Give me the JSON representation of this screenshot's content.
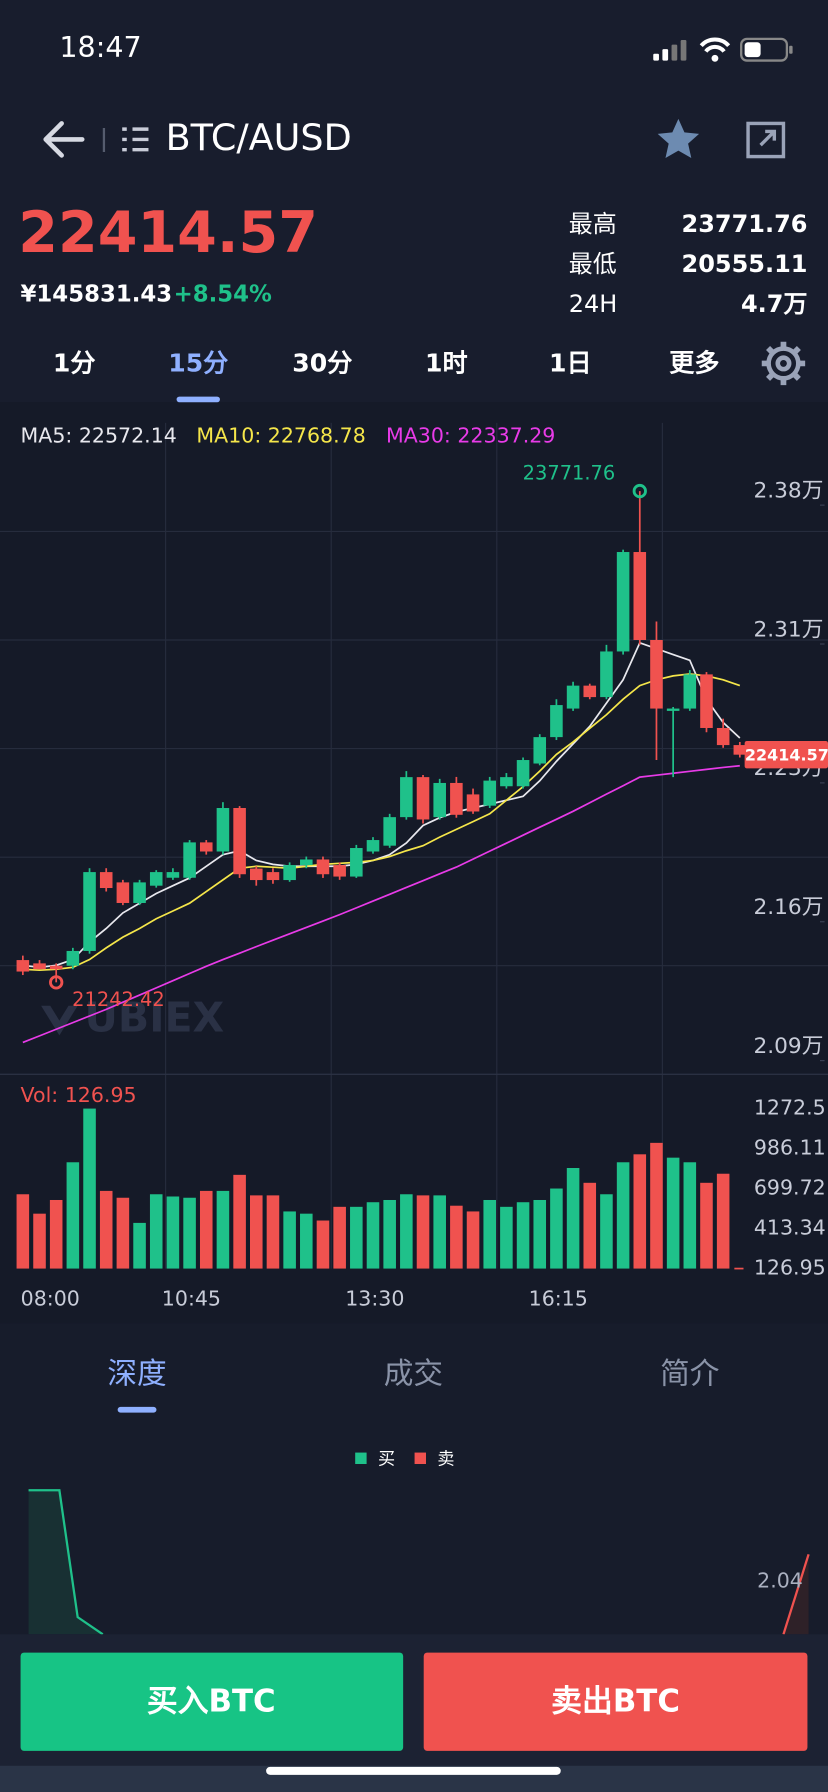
{
  "status_bar": {
    "time": "18:47"
  },
  "header": {
    "pair": "BTC/AUSD"
  },
  "ticker": {
    "price": "22414.57",
    "cny": "¥145831.43",
    "change": "+8.54%",
    "stats": [
      {
        "label": "最高",
        "value": "23771.76"
      },
      {
        "label": "最低",
        "value": "20555.11"
      },
      {
        "label": "24H",
        "value": "4.7万"
      }
    ]
  },
  "intervals": {
    "items": [
      "1分",
      "15分",
      "30分",
      "1时",
      "1日",
      "更多"
    ],
    "active": 1
  },
  "chart_data": [
    {
      "type": "candlestick",
      "up_color": "#1fc18a",
      "down_color": "#f0524f",
      "open": [
        21357,
        21340,
        21328,
        21328,
        21404,
        21810,
        21757,
        21651,
        21740,
        21781,
        21781,
        21963,
        21916,
        22140,
        21828,
        21810,
        21769,
        21846,
        21875,
        21846,
        21787,
        21916,
        21946,
        22093,
        22299,
        22093,
        22269,
        22210,
        22152,
        22252,
        22252,
        22369,
        22505,
        22652,
        22770,
        22711,
        22946,
        23458,
        23005,
        22640,
        22652,
        22828,
        22552,
        22464
      ],
      "high": [
        21380,
        21357,
        21340,
        21420,
        21830,
        21830,
        21770,
        21770,
        21820,
        21830,
        21975,
        21975,
        22170,
        22150,
        21840,
        21830,
        21860,
        21890,
        21890,
        21860,
        21950,
        21990,
        22110,
        22330,
        22310,
        22290,
        22300,
        22240,
        22300,
        22320,
        22400,
        22520,
        22700,
        22790,
        22780,
        22980,
        23470,
        23771.76,
        23100,
        22660,
        22850,
        22840,
        22600,
        22480
      ],
      "low": [
        21280,
        21310,
        21242.42,
        21310,
        21390,
        21710,
        21640,
        21640,
        21730,
        21770,
        21770,
        21900,
        21900,
        21780,
        21740,
        21750,
        21760,
        21830,
        21780,
        21770,
        21780,
        21905,
        21935,
        22080,
        22060,
        22080,
        22090,
        22110,
        22140,
        22240,
        22240,
        22360,
        22490,
        22640,
        22700,
        22700,
        22930,
        22980,
        22387,
        22299,
        22640,
        22530,
        22450,
        22400
      ],
      "close": [
        21298,
        21310,
        21310,
        21404,
        21810,
        21728,
        21651,
        21757,
        21810,
        21810,
        21963,
        21916,
        22140,
        21799,
        21769,
        21769,
        21846,
        21875,
        21799,
        21787,
        21934,
        21975,
        22093,
        22299,
        22081,
        22269,
        22105,
        22122,
        22281,
        22299,
        22387,
        22505,
        22670,
        22770,
        22711,
        22946,
        23458,
        23005,
        22652,
        22652,
        22828,
        22552,
        22464,
        22414.57
      ],
      "series": [
        {
          "name": "MA5: 22572.14",
          "color": "#e8e8ee",
          "values": [
            21330,
            21320,
            21330,
            21360,
            21450,
            21520,
            21600,
            21650,
            21700,
            21740,
            21780,
            21840,
            21900,
            21920,
            21870,
            21850,
            21840,
            21840,
            21840,
            21840,
            21850,
            21870,
            21900,
            21960,
            22050,
            22090,
            22120,
            22140,
            22160,
            22180,
            22200,
            22280,
            22380,
            22470,
            22560,
            22680,
            22800,
            22990,
            22960,
            22930,
            22900,
            22700,
            22580,
            22500
          ]
        },
        {
          "name": "MA10: 22768.78",
          "color": "#f5e64a",
          "values": [
            21310,
            21305,
            21310,
            21320,
            21360,
            21420,
            21475,
            21520,
            21570,
            21610,
            21650,
            21710,
            21770,
            21830,
            21840,
            21835,
            21830,
            21840,
            21850,
            21855,
            21860,
            21870,
            21890,
            21920,
            21946,
            21990,
            22030,
            22070,
            22110,
            22180,
            22250,
            22330,
            22416,
            22480,
            22550,
            22620,
            22700,
            22770,
            22800,
            22820,
            22830,
            22820,
            22800,
            22770
          ]
        },
        {
          "name": "MA30: 22337.29",
          "color": "#e83be8",
          "values": [
            20933,
            20967,
            21001,
            21035,
            21069,
            21103,
            21140,
            21177,
            21214,
            21251,
            21288,
            21325,
            21360,
            21393,
            21426,
            21459,
            21492,
            21525,
            21558,
            21591,
            21626,
            21661,
            21696,
            21731,
            21766,
            21801,
            21836,
            21877,
            21918,
            21959,
            22000,
            22041,
            22082,
            22123,
            22167,
            22211,
            22255,
            22299,
            22309,
            22319,
            22329,
            22339,
            22349,
            22358
          ]
        }
      ],
      "ylim": [
        20769,
        24123
      ],
      "yticks": [
        {
          "value": 23770,
          "label": "2.38万"
        },
        {
          "value": 23055,
          "label": "2.31万"
        },
        {
          "value": 22340,
          "label": "2.23万"
        },
        {
          "value": 21625,
          "label": "2.16万"
        },
        {
          "value": 20910,
          "label": "2.09万"
        }
      ]
    },
    {
      "type": "bar",
      "title": "Vol: 126.95",
      "categories": [
        "08:00",
        null,
        null,
        null,
        null,
        null,
        null,
        null,
        null,
        null,
        null,
        "10:45",
        null,
        null,
        null,
        null,
        null,
        null,
        null,
        null,
        null,
        null,
        "13:30",
        null,
        null,
        null,
        null,
        null,
        null,
        null,
        null,
        null,
        null,
        "16:15",
        null,
        null,
        null,
        null,
        null,
        null,
        null,
        null,
        null,
        null
      ],
      "values": [
        659,
        520,
        618,
        888,
        1272.5,
        683,
        634,
        454,
        659,
        643,
        634,
        683,
        683,
        798,
        651,
        651,
        536,
        520,
        471,
        569,
        569,
        602,
        618,
        659,
        651,
        651,
        577,
        536,
        618,
        569,
        602,
        618,
        700,
        847,
        741,
        659,
        888,
        945,
        1027,
        921,
        888,
        741,
        806,
        126.95
      ],
      "ylim": [
        126.95,
        1272.5
      ],
      "yticks": [
        1272.5,
        986.11,
        699.72,
        413.34,
        126.95
      ]
    }
  ],
  "watermark": "UBIEX",
  "sections": {
    "items": [
      "深度",
      "成交",
      "简介"
    ],
    "active": 0
  },
  "depth": {
    "legend": [
      "买",
      "卖"
    ],
    "price_label": "2.04"
  },
  "actions": {
    "buy": "买入BTC",
    "sell": "卖出BTC"
  }
}
